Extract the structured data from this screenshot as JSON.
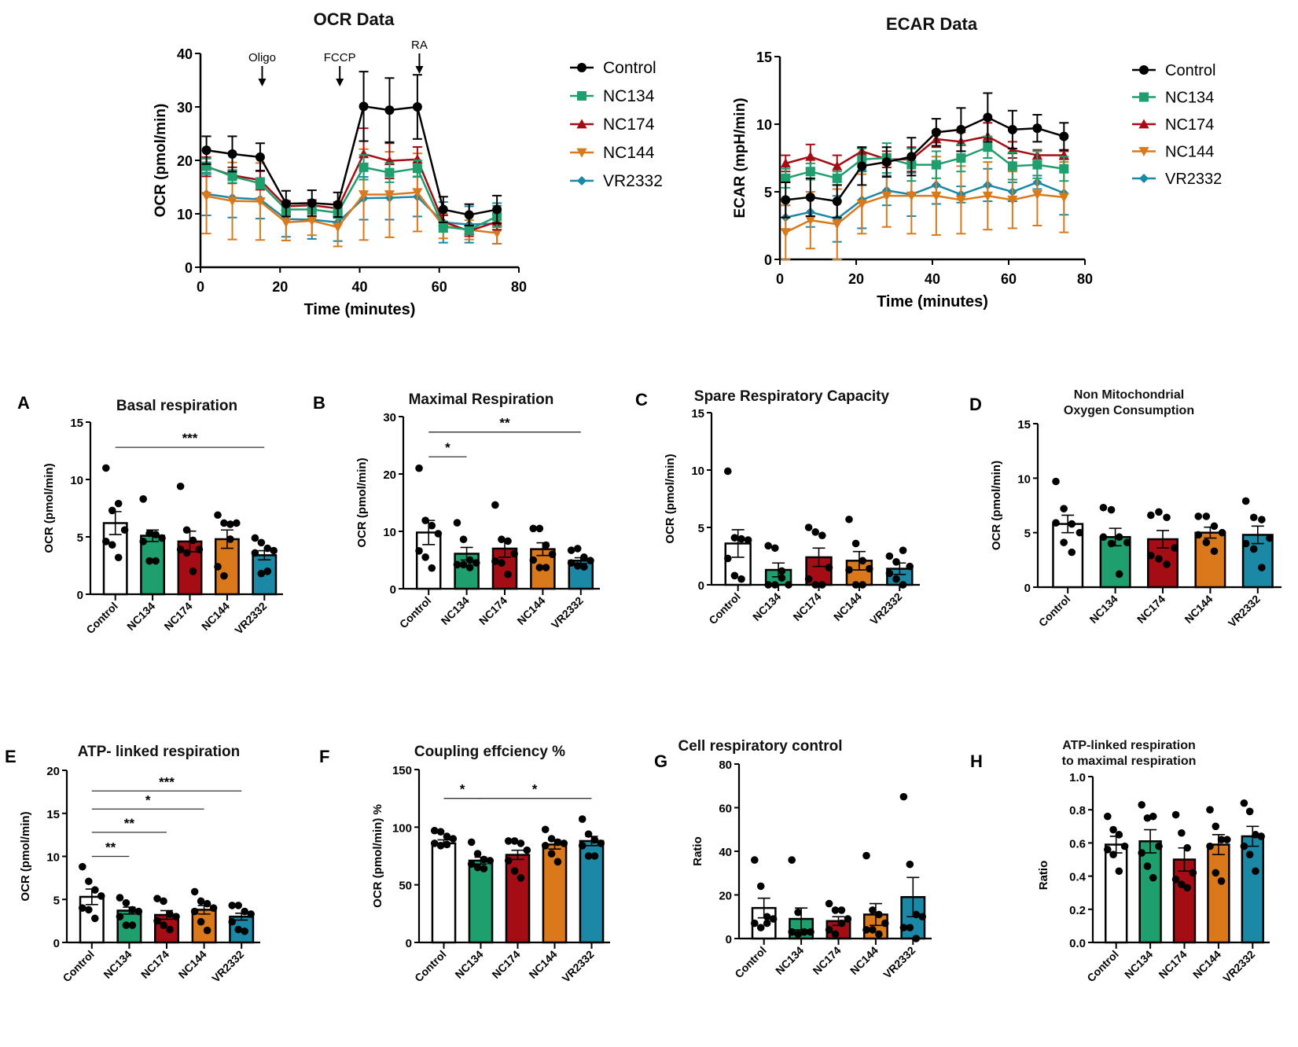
{
  "groups": [
    "Control",
    "NC134",
    "NC174",
    "NC144",
    "VR2332"
  ],
  "colors": {
    "Control": "#000000",
    "NC134": "#1f9e6e",
    "NC174": "#a40d14",
    "NC144": "#d9791b",
    "VR2332": "#1b88a6"
  },
  "bar_fills": {
    "Control": "#ffffff",
    "NC134": "#1f9e6e",
    "NC174": "#a40d14",
    "NC144": "#d9791b",
    "VR2332": "#1b88a6"
  },
  "chart_data": [
    {
      "id": "ocr",
      "type": "line",
      "title": "OCR Data",
      "xlabel": "Time (minutes)",
      "ylabel": "OCR (pmol/min)",
      "xlim": [
        0,
        80
      ],
      "ylim": [
        0,
        40
      ],
      "xticks": [
        0,
        20,
        40,
        60,
        80
      ],
      "yticks": [
        0,
        10,
        20,
        30,
        40
      ],
      "grid": false,
      "legend": "right",
      "annotations": [
        {
          "label": "Oligo",
          "x": 15.5
        },
        {
          "label": "FCCP",
          "x": 35
        },
        {
          "label": "RA",
          "x": 55
        }
      ],
      "x": [
        1.5,
        8,
        15,
        21.5,
        28,
        34.5,
        41,
        47.5,
        54.5,
        61,
        67.5,
        74.5
      ],
      "series": [
        {
          "name": "Control",
          "marker": "circle",
          "values": [
            21.9,
            21.2,
            20.6,
            11.9,
            12.0,
            11.7,
            30.1,
            29.4,
            30.0,
            10.8,
            9.8,
            10.8
          ],
          "err": [
            2.6,
            3.3,
            2.6,
            2.4,
            2.4,
            2.3,
            6.5,
            6.0,
            6.0,
            2.4,
            2.0,
            2.6
          ]
        },
        {
          "name": "NC134",
          "marker": "square",
          "values": [
            18.9,
            17.0,
            15.7,
            10.8,
            10.8,
            10.2,
            18.7,
            17.7,
            18.5,
            7.6,
            7.0,
            9.5
          ],
          "err": [
            1.5,
            1.2,
            1.0,
            1.0,
            0.8,
            1.0,
            2.3,
            1.8,
            1.5,
            1.0,
            0.8,
            2.0
          ]
        },
        {
          "name": "NC174",
          "marker": "triangle-up",
          "values": [
            18.8,
            17.2,
            16.3,
            11.4,
            11.6,
            11.0,
            21.2,
            19.9,
            20.2,
            8.5,
            6.8,
            8.5
          ],
          "err": [
            1.8,
            1.5,
            1.8,
            1.0,
            1.0,
            1.2,
            4.8,
            3.3,
            2.3,
            1.2,
            1.0,
            1.5
          ]
        },
        {
          "name": "NC144",
          "marker": "triangle-down",
          "values": [
            13.3,
            12.4,
            12.3,
            8.4,
            8.7,
            7.5,
            13.6,
            13.6,
            14.0,
            7.7,
            7.0,
            6.4
          ],
          "err": [
            7.0,
            7.2,
            7.2,
            3.4,
            2.7,
            3.6,
            8.5,
            8.0,
            7.3,
            2.3,
            1.8,
            2.0
          ]
        },
        {
          "name": "VR2332",
          "marker": "diamond",
          "values": [
            13.7,
            13.0,
            12.7,
            9.0,
            8.9,
            8.4,
            12.9,
            13.0,
            13.2,
            8.4,
            8.0,
            8.2
          ],
          "err": [
            4.0,
            3.7,
            3.6,
            3.3,
            3.6,
            3.5,
            4.0,
            4.1,
            3.7,
            3.8,
            3.4,
            3.8
          ]
        }
      ]
    },
    {
      "id": "ecar",
      "type": "line",
      "title": "ECAR Data",
      "xlabel": "Time (minutes)",
      "ylabel": "ECAR (mpH/min)",
      "xlim": [
        0,
        80
      ],
      "ylim": [
        0,
        15
      ],
      "xticks": [
        0,
        20,
        40,
        60,
        80
      ],
      "yticks": [
        0,
        5,
        10,
        15
      ],
      "grid": false,
      "legend": "right",
      "x": [
        1.5,
        8,
        15,
        21.5,
        28,
        34.5,
        41,
        47.5,
        54.5,
        61,
        67.5,
        74.5
      ],
      "series": [
        {
          "name": "Control",
          "marker": "circle",
          "values": [
            4.4,
            4.6,
            4.3,
            6.9,
            7.2,
            7.6,
            9.4,
            9.6,
            10.5,
            9.6,
            9.7,
            9.1
          ],
          "err": [
            1.3,
            1.4,
            1.2,
            1.4,
            1.1,
            1.4,
            1.0,
            1.6,
            1.8,
            1.4,
            1.0,
            1.0
          ]
        },
        {
          "name": "NC134",
          "marker": "square",
          "values": [
            6.0,
            6.5,
            6.0,
            7.4,
            7.5,
            7.0,
            7.0,
            7.5,
            8.3,
            6.9,
            7.0,
            6.7
          ],
          "err": [
            0.7,
            0.6,
            0.5,
            0.8,
            1.1,
            1.2,
            1.0,
            1.0,
            0.8,
            1.0,
            1.0,
            0.9
          ]
        },
        {
          "name": "NC174",
          "marker": "triangle-up",
          "values": [
            7.1,
            7.6,
            6.9,
            8.0,
            7.4,
            7.4,
            8.9,
            8.7,
            9.1,
            8.1,
            7.7,
            7.7
          ],
          "err": [
            0.6,
            0.9,
            0.8,
            0.3,
            0.6,
            0.9,
            0.6,
            0.7,
            1.0,
            0.6,
            0.4,
            0.3
          ]
        },
        {
          "name": "NC144",
          "marker": "triangle-down",
          "values": [
            2.0,
            2.9,
            2.6,
            4.1,
            4.7,
            4.7,
            4.7,
            4.4,
            4.7,
            4.4,
            4.8,
            4.6
          ],
          "err": [
            2.0,
            2.1,
            2.6,
            2.2,
            2.3,
            2.8,
            2.9,
            2.5,
            2.5,
            2.1,
            2.3,
            2.6
          ]
        },
        {
          "name": "VR2332",
          "marker": "diamond",
          "values": [
            3.1,
            3.5,
            3.0,
            4.4,
            5.1,
            4.8,
            5.5,
            4.8,
            5.5,
            5.0,
            5.7,
            4.9
          ],
          "err": [
            0.9,
            1.1,
            1.7,
            2.1,
            1.1,
            1.6,
            1.4,
            0.6,
            1.2,
            0.7,
            0.5,
            1.6
          ]
        }
      ]
    },
    {
      "id": "A",
      "panel": "A",
      "type": "bar",
      "title": "Basal respiration",
      "ylabel": "OCR (pmol/min)",
      "ylim": [
        0,
        15
      ],
      "yticks": [
        0,
        5,
        10,
        15
      ],
      "categories": [
        "Control",
        "NC134",
        "NC174",
        "NC144",
        "VR2332"
      ],
      "values": [
        6.2,
        5.1,
        4.6,
        4.8,
        3.4
      ],
      "sem": [
        1.0,
        0.5,
        0.9,
        0.8,
        0.4
      ],
      "points": [
        [
          11.0,
          7.3,
          7.9,
          5.6,
          4.6,
          4.3,
          3.2
        ],
        [
          8.3,
          5.3,
          5.2,
          4.9,
          4.6,
          2.9,
          2.9
        ],
        [
          9.4,
          5.6,
          4.7,
          3.9,
          3.9,
          3.6,
          2.0
        ],
        [
          6.9,
          6.2,
          6.1,
          6.2,
          2.4,
          1.6,
          4.8
        ],
        [
          4.9,
          4.5,
          4.0,
          3.8,
          3.6,
          1.8,
          2.0
        ]
      ],
      "significance": [
        {
          "from": 0,
          "to": 4,
          "label": "***",
          "y": 12.8
        }
      ]
    },
    {
      "id": "B",
      "panel": "B",
      "type": "bar",
      "title": "Maximal Respiration",
      "ylabel": "OCR (pmol/min)",
      "ylim": [
        0,
        30
      ],
      "yticks": [
        0,
        10,
        20,
        30
      ],
      "categories": [
        "Control",
        "NC134",
        "NC174",
        "NC144",
        "VR2332"
      ],
      "values": [
        9.8,
        6.1,
        7.0,
        6.9,
        4.9
      ],
      "sem": [
        2.1,
        1.1,
        1.5,
        1.1,
        0.5
      ],
      "points": [
        [
          21.0,
          11.9,
          11.0,
          9.6,
          6.6,
          5.5,
          3.6
        ],
        [
          11.5,
          8.6,
          5.0,
          4.5,
          4.2,
          4.2,
          3.7
        ],
        [
          14.6,
          8.6,
          8.3,
          6.1,
          4.8,
          4.5,
          2.5
        ],
        [
          10.5,
          10.5,
          7.6,
          6.0,
          5.0,
          3.7,
          3.7
        ],
        [
          6.7,
          7.0,
          5.5,
          4.9,
          4.5,
          4.0,
          3.8
        ]
      ],
      "significance": [
        {
          "from": 0,
          "to": 1,
          "label": "*",
          "y": 23.0
        },
        {
          "from": 0,
          "to": 4,
          "label": "**",
          "y": 27.3
        }
      ]
    },
    {
      "id": "C",
      "panel": "C",
      "type": "bar",
      "title": "Spare Respiratory Capacity",
      "ylabel": "OCR (pmol/min)",
      "ylim": [
        0,
        15
      ],
      "yticks": [
        0,
        5,
        10,
        15
      ],
      "categories": [
        "Control",
        "NC134",
        "NC174",
        "NC144",
        "VR2332"
      ],
      "values": [
        3.6,
        1.3,
        2.4,
        2.1,
        1.4
      ],
      "sem": [
        1.2,
        0.6,
        0.8,
        0.8,
        0.5
      ],
      "points": [
        [
          9.9,
          4.1,
          4.0,
          3.9,
          2.3,
          0.8,
          0.5
        ],
        [
          3.4,
          3.2,
          0.6,
          0.0,
          0.0,
          0.0,
          1.2
        ],
        [
          5.0,
          4.6,
          4.3,
          1.5,
          0.5,
          0.0,
          0.0
        ],
        [
          5.7,
          3.6,
          2.1,
          1.4,
          1.3,
          0.0,
          0.0
        ],
        [
          2.5,
          2.0,
          3.0,
          1.6,
          1.0,
          0.5,
          0.0
        ]
      ],
      "significance": []
    },
    {
      "id": "D",
      "panel": "D",
      "type": "bar",
      "title": "Non Mitochondrial\nOxygen Consumption",
      "ylabel": "OCR (pmol/min)",
      "ylim": [
        0,
        15
      ],
      "yticks": [
        0,
        5,
        10,
        15
      ],
      "categories": [
        "Control",
        "NC134",
        "NC174",
        "NC144",
        "VR2332"
      ],
      "values": [
        5.8,
        4.6,
        4.4,
        5.0,
        4.8
      ],
      "sem": [
        0.8,
        0.8,
        0.8,
        0.5,
        0.8
      ],
      "points": [
        [
          9.7,
          7.2,
          5.8,
          5.0,
          5.9,
          4.1,
          3.2
        ],
        [
          7.3,
          7.1,
          4.6,
          4.1,
          4.6,
          4.0,
          1.2
        ],
        [
          6.6,
          6.9,
          6.4,
          3.6,
          2.9,
          2.6,
          2.1
        ],
        [
          6.5,
          6.5,
          5.6,
          5.0,
          4.8,
          4.1,
          3.3
        ],
        [
          7.9,
          6.4,
          6.2,
          4.5,
          4.0,
          3.5,
          1.8
        ]
      ],
      "significance": []
    },
    {
      "id": "E",
      "panel": "E",
      "type": "bar",
      "title": "ATP- linked respiration",
      "ylabel": "OCR (pmol/min)",
      "ylim": [
        0,
        20
      ],
      "yticks": [
        0,
        5,
        10,
        15,
        20
      ],
      "categories": [
        "Control",
        "NC134",
        "NC174",
        "NC144",
        "VR2332"
      ],
      "values": [
        5.3,
        3.7,
        3.2,
        3.8,
        3.0
      ],
      "sem": [
        0.9,
        0.4,
        0.5,
        0.5,
        0.4
      ],
      "points": [
        [
          8.8,
          7.1,
          6.1,
          5.4,
          4.0,
          3.8,
          2.8
        ],
        [
          5.2,
          4.6,
          3.8,
          3.6,
          3.0,
          2.0,
          2.0
        ],
        [
          5.1,
          4.8,
          3.3,
          3.0,
          2.5,
          2.0,
          1.5
        ],
        [
          5.9,
          4.8,
          4.5,
          4.0,
          3.6,
          2.4,
          1.4
        ],
        [
          4.3,
          4.3,
          3.6,
          3.3,
          2.4,
          1.5,
          1.3
        ]
      ],
      "significance": [
        {
          "from": 0,
          "to": 1,
          "label": "**",
          "y": 10.0
        },
        {
          "from": 0,
          "to": 2,
          "label": "**",
          "y": 12.8
        },
        {
          "from": 0,
          "to": 3,
          "label": "*",
          "y": 15.5
        },
        {
          "from": 0,
          "to": 4,
          "label": "***",
          "y": 17.6
        }
      ]
    },
    {
      "id": "F",
      "panel": "F",
      "type": "bar",
      "title": "Coupling effciency %",
      "ylabel": "OCR (pmol/min) %",
      "ylim": [
        0,
        150
      ],
      "yticks": [
        0,
        50,
        100,
        150
      ],
      "categories": [
        "Control",
        "NC134",
        "NC174",
        "NC144",
        "VR2332"
      ],
      "values": [
        86,
        71,
        76,
        85,
        88
      ],
      "sem": [
        3,
        3,
        4,
        4,
        4
      ],
      "points": [
        [
          97,
          96,
          92,
          90,
          86,
          84,
          85
        ],
        [
          87,
          77,
          72,
          71,
          68,
          65,
          64
        ],
        [
          88,
          88,
          86,
          80,
          71,
          62,
          56
        ],
        [
          98,
          90,
          87,
          86,
          84,
          77,
          70
        ],
        [
          107,
          94,
          89,
          86,
          84,
          75,
          75
        ]
      ],
      "significance": [
        {
          "from": 0,
          "to": 1,
          "label": "*",
          "y": 125
        },
        {
          "from": 1,
          "to": 4,
          "label": "*",
          "y": 125
        }
      ]
    },
    {
      "id": "G",
      "panel": "G",
      "type": "bar",
      "title": "Cell respiratory control",
      "ylabel": "Ratio",
      "ylim": [
        0,
        80
      ],
      "yticks": [
        0,
        20,
        40,
        60,
        80
      ],
      "categories": [
        "Control",
        "NC134",
        "NC174",
        "NC144",
        "VR2332"
      ],
      "values": [
        14,
        9,
        8,
        11,
        19
      ],
      "sem": [
        4.5,
        5,
        2,
        5,
        9
      ],
      "points": [
        [
          36,
          24,
          10,
          9,
          7,
          5,
          7
        ],
        [
          36,
          12,
          3,
          3,
          3,
          2,
          3
        ],
        [
          16,
          13,
          13,
          9,
          4,
          2,
          7
        ],
        [
          38,
          13,
          11,
          7,
          4,
          4,
          2
        ],
        [
          65,
          34,
          11,
          10,
          5,
          5,
          0
        ]
      ],
      "significance": []
    },
    {
      "id": "H",
      "panel": "H",
      "type": "bar",
      "title": "ATP-linked respiration\nto maximal respiration",
      "ylabel": "Ratio",
      "ylim": [
        0,
        1.0
      ],
      "yticks": [
        0,
        0.2,
        0.4,
        0.6,
        0.8,
        1.0
      ],
      "categories": [
        "Control",
        "NC134",
        "NC174",
        "NC144",
        "VR2332"
      ],
      "values": [
        0.59,
        0.61,
        0.5,
        0.59,
        0.64
      ],
      "sem": [
        0.05,
        0.07,
        0.07,
        0.06,
        0.06
      ],
      "points": [
        [
          0.76,
          0.68,
          0.65,
          0.58,
          0.56,
          0.53,
          0.43
        ],
        [
          0.83,
          0.75,
          0.76,
          0.58,
          0.54,
          0.46,
          0.39
        ],
        [
          0.77,
          0.66,
          0.57,
          0.42,
          0.38,
          0.35,
          0.33
        ],
        [
          0.8,
          0.7,
          0.62,
          0.62,
          0.58,
          0.42,
          0.37
        ],
        [
          0.84,
          0.79,
          0.65,
          0.64,
          0.58,
          0.53,
          0.43
        ]
      ],
      "significance": []
    }
  ]
}
